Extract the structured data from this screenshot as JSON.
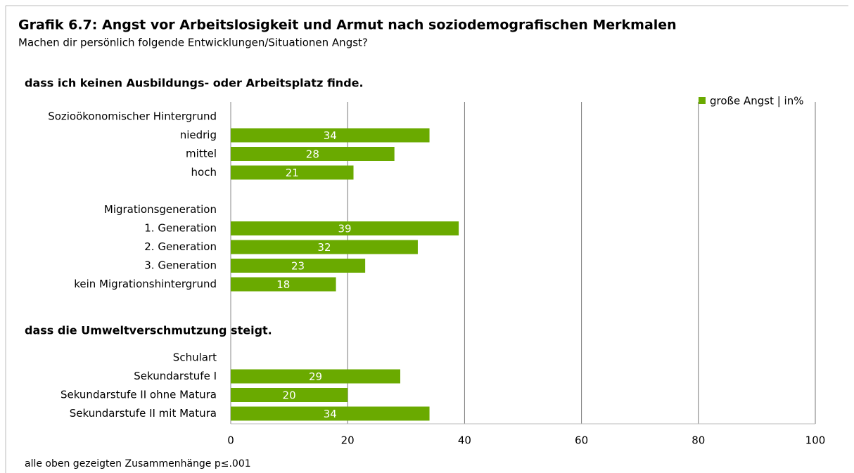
{
  "header": {
    "title": "Grafik 6.7: Angst vor Arbeitslosigkeit und Armut nach soziodemografischen Merkmalen",
    "subtitle": "Machen dir persönlich folgende Entwicklungen/Situationen Angst?"
  },
  "footnote": "alle oben gezeigten Zusammenhänge p≤.001",
  "chart_data": [
    {
      "type": "bar",
      "orientation": "horizontal",
      "title": "dass ich keinen Ausbildungs- oder Arbeitsplatz finde.",
      "categories": [
        "Sozioökonomischer Hintergrund",
        "niedrig",
        "mittel",
        "hoch",
        null,
        "Migrationsgeneration",
        "1. Generation",
        "2. Generation",
        "3. Generation",
        "kein Migrationshintergrund"
      ],
      "series": [
        {
          "name": "große Angst | in%",
          "color": "#6aaa00",
          "values": [
            null,
            34,
            28,
            21,
            null,
            null,
            39,
            32,
            23,
            18
          ]
        }
      ],
      "xlim": [
        0,
        100
      ],
      "xticks": [
        0,
        20,
        40,
        60,
        80,
        100
      ],
      "grid": true,
      "legend": "top-right"
    },
    {
      "type": "bar",
      "orientation": "horizontal",
      "title": "dass die Umweltverschmutzung steigt.",
      "categories": [
        "Schulart",
        "Sekundarstufe I",
        "Sekundarstufe II ohne Matura",
        "Sekundarstufe II mit Matura"
      ],
      "series": [
        {
          "color": "#6aaa00",
          "values": [
            null,
            29,
            20,
            34
          ]
        }
      ],
      "xlim": [
        0,
        100
      ],
      "xticks": [
        0,
        20,
        40,
        60,
        80,
        100
      ],
      "grid": true
    }
  ]
}
